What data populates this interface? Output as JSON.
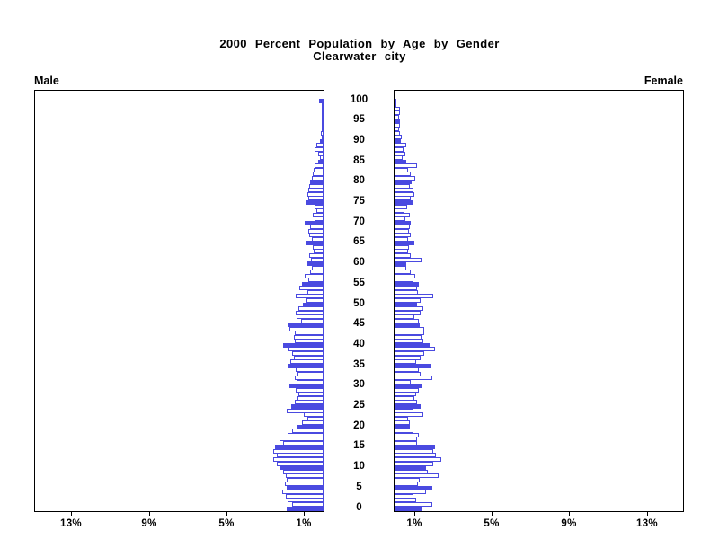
{
  "page": {
    "background": "#ffffff"
  },
  "chart_data": {
    "type": "bar",
    "variant": "population_pyramid",
    "title": "2000 Percent Population by Age by Gender",
    "subtitle": "Clearwater city",
    "left_panel_label": "Male",
    "right_panel_label": "Female",
    "age_axis": {
      "min": 0,
      "max": 100,
      "label_interval": 5,
      "labels": [
        "0",
        "5",
        "10",
        "15",
        "20",
        "25",
        "30",
        "35",
        "40",
        "45",
        "50",
        "55",
        "60",
        "65",
        "70",
        "75",
        "80",
        "85",
        "90",
        "95",
        "100"
      ]
    },
    "percent_axis": {
      "ticks": [
        {
          "label": "1%",
          "pct": 1
        },
        {
          "label": "5%",
          "pct": 5
        },
        {
          "label": "9%",
          "pct": 9
        },
        {
          "label": "13%",
          "pct": 13
        }
      ],
      "max_pct": 14.9
    },
    "bar_unit": "percent_of_total_population_per_single_year_of_age",
    "highlight_fill_every_years": 5,
    "colors": {
      "bar_blue": "#4a4ae0",
      "bar_white": "#ffffff",
      "axis_black": "#000000",
      "text_black": "#000000"
    },
    "series": [
      {
        "name": "Male",
        "side": "left",
        "values_by_age_0_to_100": [
          1.9,
          1.6,
          1.85,
          1.95,
          2.15,
          1.9,
          2.0,
          1.9,
          1.95,
          2.1,
          2.2,
          2.4,
          2.6,
          2.4,
          2.6,
          2.5,
          2.1,
          2.25,
          1.85,
          1.6,
          1.35,
          1.1,
          0.85,
          1.0,
          1.9,
          1.65,
          1.5,
          1.35,
          1.3,
          1.45,
          1.75,
          1.4,
          1.5,
          1.35,
          1.45,
          1.85,
          1.7,
          1.55,
          1.6,
          1.8,
          2.1,
          1.5,
          1.55,
          1.5,
          1.75,
          1.8,
          1.15,
          1.4,
          1.45,
          1.3,
          1.05,
          0.9,
          1.45,
          0.85,
          1.25,
          1.1,
          0.8,
          0.95,
          0.7,
          0.6,
          0.85,
          0.65,
          0.75,
          0.5,
          0.55,
          0.9,
          0.6,
          0.75,
          0.8,
          0.7,
          0.95,
          0.45,
          0.55,
          0.35,
          0.45,
          0.9,
          0.8,
          0.85,
          0.8,
          0.75,
          0.7,
          0.6,
          0.55,
          0.5,
          0.45,
          0.3,
          0.2,
          0.28,
          0.45,
          0.35,
          0.2,
          0.1,
          0.14,
          0.05,
          0.05,
          0.05,
          0.04,
          0.03,
          0.03,
          0.02,
          0.22
        ]
      },
      {
        "name": "Female",
        "side": "right",
        "values_by_age_0_to_100": [
          1.4,
          1.95,
          1.1,
          0.95,
          1.6,
          1.95,
          1.2,
          1.3,
          2.25,
          1.7,
          1.6,
          2.0,
          2.4,
          2.15,
          2.0,
          2.1,
          1.15,
          1.15,
          1.25,
          0.95,
          0.8,
          0.8,
          0.7,
          1.5,
          0.95,
          1.35,
          1.15,
          1.0,
          1.1,
          1.25,
          1.4,
          0.85,
          1.95,
          1.35,
          1.25,
          1.85,
          1.1,
          1.35,
          1.55,
          2.1,
          1.8,
          1.5,
          1.4,
          1.55,
          1.55,
          1.3,
          1.25,
          1.0,
          1.35,
          1.5,
          1.15,
          1.35,
          2.0,
          1.2,
          1.15,
          1.25,
          0.95,
          1.05,
          0.85,
          0.6,
          0.6,
          1.4,
          0.85,
          0.7,
          0.75,
          1.0,
          0.7,
          0.85,
          0.75,
          0.8,
          0.85,
          0.55,
          0.8,
          0.5,
          0.65,
          0.95,
          0.85,
          1.0,
          0.95,
          0.8,
          0.9,
          1.05,
          0.85,
          0.7,
          1.15,
          0.6,
          0.4,
          0.55,
          0.45,
          0.6,
          0.33,
          0.37,
          0.3,
          0.25,
          0.28,
          0.27,
          0.22,
          0.3,
          0.3,
          0.1,
          0.05
        ]
      }
    ]
  }
}
